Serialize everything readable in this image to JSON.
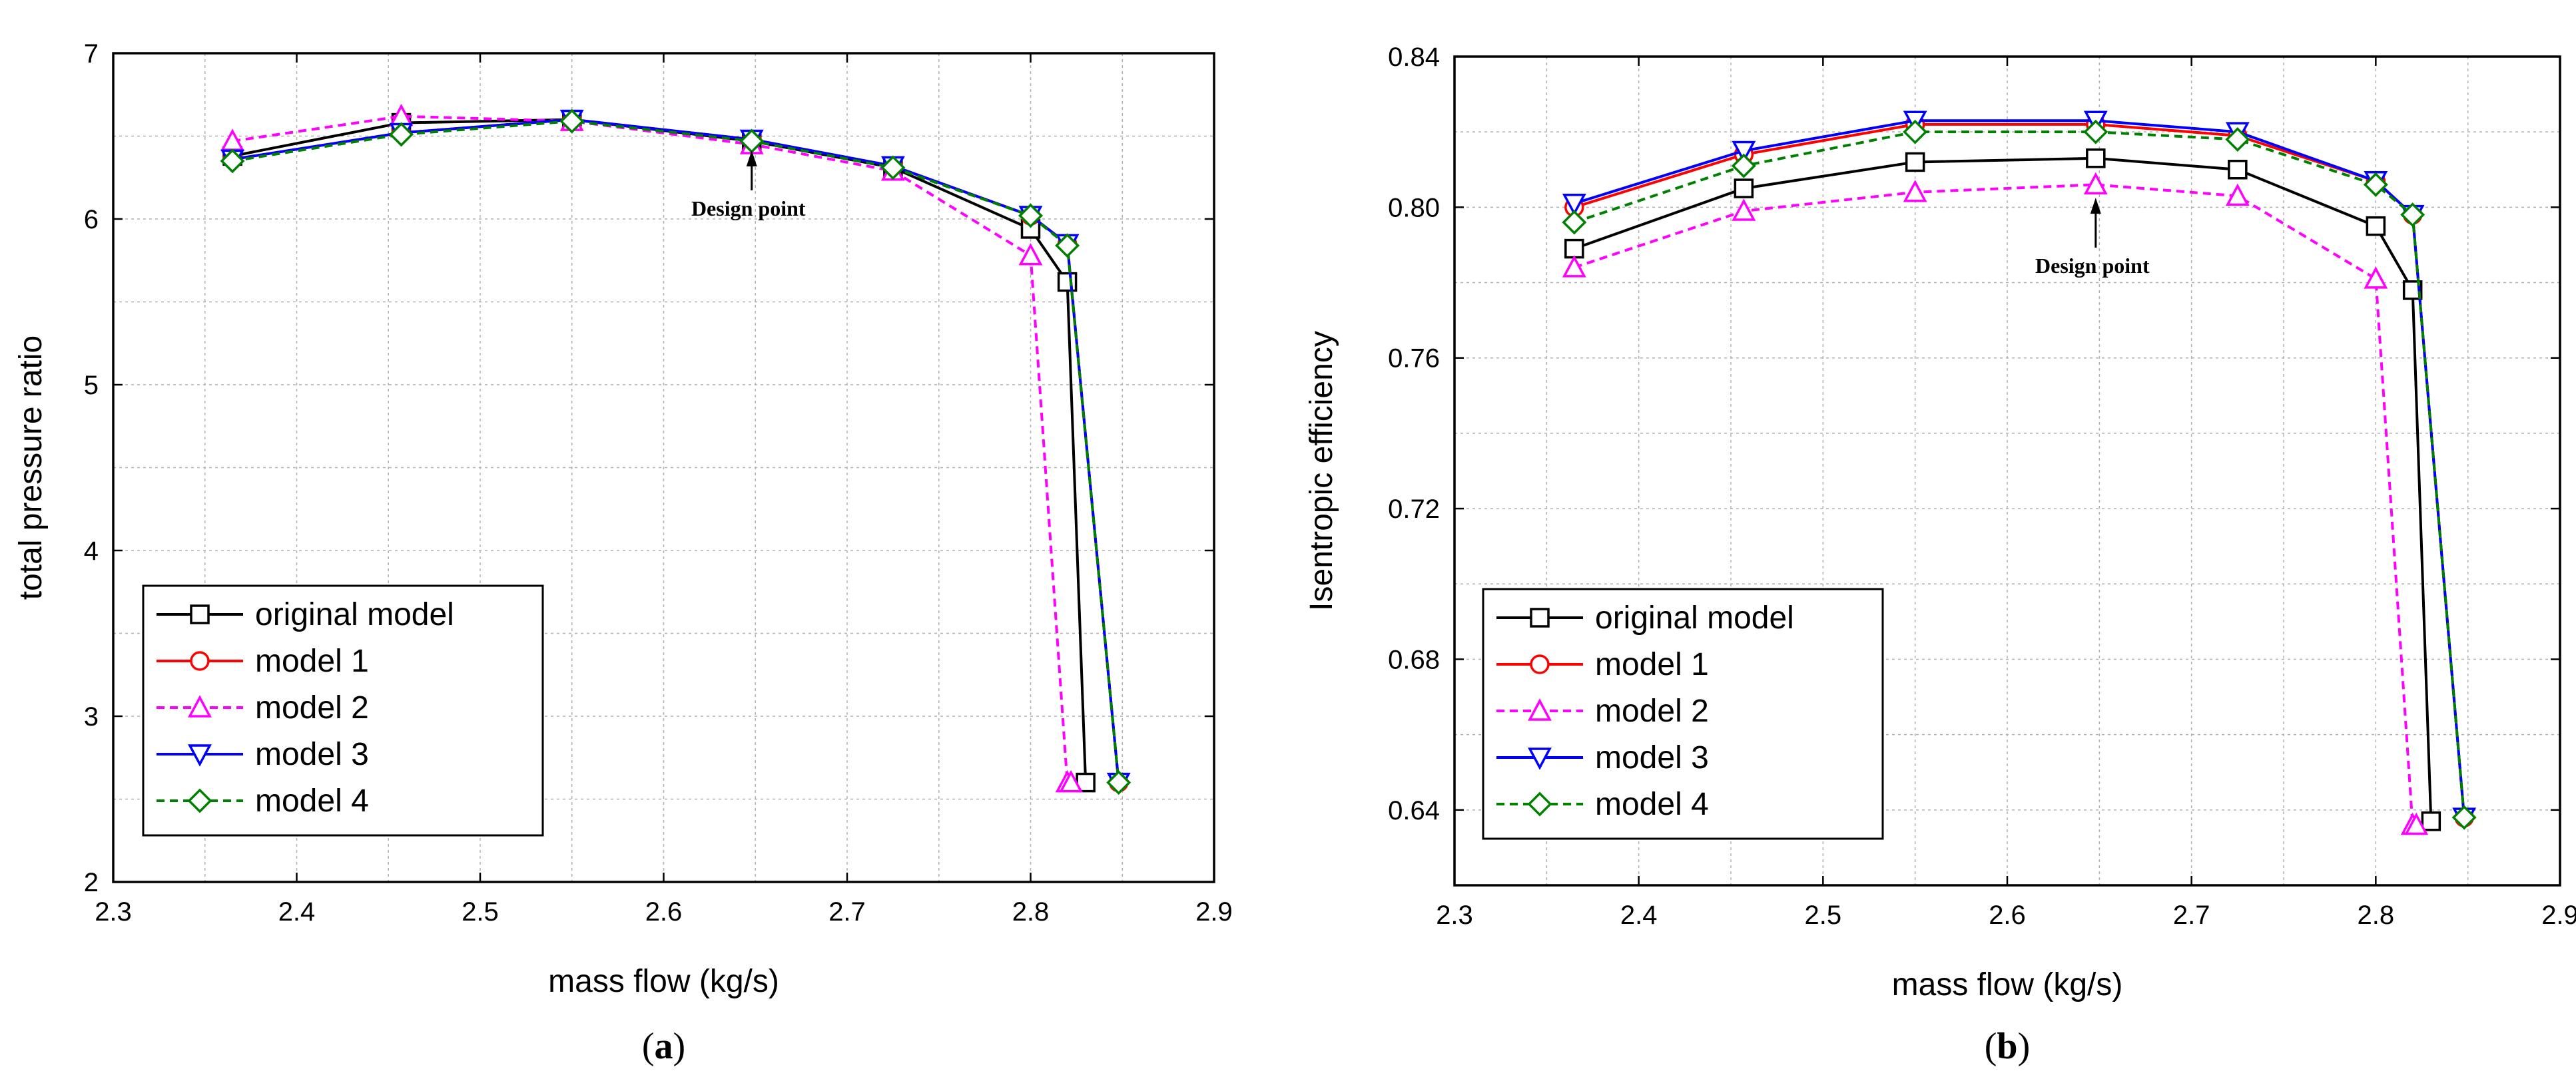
{
  "chart_data": [
    {
      "type": "line",
      "panel_label": "a",
      "xlabel": "mass flow (kg/s)",
      "ylabel": "total pressure ratio",
      "xlim": [
        2.3,
        2.9
      ],
      "ylim": [
        2,
        7
      ],
      "xticks": [
        "2.3",
        "2.4",
        "2.5",
        "2.6",
        "2.7",
        "2.8",
        "2.9"
      ],
      "yticks": [
        "2",
        "3",
        "4",
        "5",
        "6",
        "7"
      ],
      "grid": true,
      "legend_position": "bottom-left",
      "annotation": {
        "text": "Design point",
        "x": 2.648,
        "y": 6.47
      },
      "series": [
        {
          "name": "original model",
          "color": "#000000",
          "dash": "solid",
          "marker": "square",
          "x": [
            2.365,
            2.457,
            2.55,
            2.648,
            2.725,
            2.8,
            2.82,
            2.83
          ],
          "y": [
            6.38,
            6.58,
            6.6,
            6.47,
            6.31,
            5.94,
            5.62,
            2.6
          ]
        },
        {
          "name": "model 1",
          "color": "#ff0000",
          "dash": "solid",
          "marker": "circle",
          "x": [
            2.365,
            2.457,
            2.55,
            2.648,
            2.725,
            2.8,
            2.82,
            2.848
          ],
          "y": [
            6.36,
            6.52,
            6.6,
            6.48,
            6.32,
            6.02,
            5.85,
            2.6
          ]
        },
        {
          "name": "model 2",
          "color": "#ff00ff",
          "dash": "dashed",
          "marker": "triangle-up",
          "x": [
            2.365,
            2.457,
            2.55,
            2.648,
            2.725,
            2.8,
            2.82,
            2.822
          ],
          "y": [
            6.47,
            6.62,
            6.59,
            6.45,
            6.29,
            5.78,
            2.6,
            2.6
          ]
        },
        {
          "name": "model 3",
          "color": "#0000ff",
          "dash": "solid",
          "marker": "triangle-down",
          "x": [
            2.365,
            2.457,
            2.55,
            2.648,
            2.725,
            2.8,
            2.82,
            2.848
          ],
          "y": [
            6.36,
            6.52,
            6.6,
            6.48,
            6.32,
            6.02,
            5.85,
            2.6
          ]
        },
        {
          "name": "model 4",
          "color": "#008000",
          "dash": "dashed",
          "marker": "diamond",
          "x": [
            2.365,
            2.457,
            2.55,
            2.648,
            2.725,
            2.8,
            2.82,
            2.848
          ],
          "y": [
            6.35,
            6.51,
            6.59,
            6.47,
            6.31,
            6.02,
            5.84,
            2.6
          ]
        }
      ]
    },
    {
      "type": "line",
      "panel_label": "b",
      "xlabel": "mass flow (kg/s)",
      "ylabel": "Isentropic efficiency",
      "xlim": [
        2.3,
        2.9
      ],
      "ylim": [
        0.62,
        0.84
      ],
      "xticks": [
        "2.3",
        "2.4",
        "2.5",
        "2.6",
        "2.7",
        "2.8",
        "2.9"
      ],
      "yticks": [
        "0.64",
        "0.68",
        "0.72",
        "0.76",
        "0.80",
        "0.84"
      ],
      "grid": true,
      "legend_position": "bottom-left",
      "annotation": {
        "text": "Design point",
        "x": 2.648,
        "y": 0.805
      },
      "series": [
        {
          "name": "original model",
          "color": "#000000",
          "dash": "solid",
          "marker": "square",
          "x": [
            2.365,
            2.457,
            2.55,
            2.648,
            2.725,
            2.8,
            2.82,
            2.83
          ],
          "y": [
            0.789,
            0.805,
            0.812,
            0.813,
            0.81,
            0.795,
            0.778,
            0.637
          ]
        },
        {
          "name": "model 1",
          "color": "#ff0000",
          "dash": "solid",
          "marker": "circle",
          "x": [
            2.365,
            2.457,
            2.55,
            2.648,
            2.725,
            2.8,
            2.82,
            2.848
          ],
          "y": [
            0.8,
            0.814,
            0.822,
            0.822,
            0.819,
            0.807,
            0.798,
            0.638
          ]
        },
        {
          "name": "model 2",
          "color": "#ff00ff",
          "dash": "dashed",
          "marker": "triangle-up",
          "x": [
            2.365,
            2.457,
            2.55,
            2.648,
            2.725,
            2.8,
            2.82,
            2.822
          ],
          "y": [
            0.784,
            0.799,
            0.804,
            0.806,
            0.803,
            0.781,
            0.636,
            0.636
          ]
        },
        {
          "name": "model 3",
          "color": "#0000ff",
          "dash": "solid",
          "marker": "triangle-down",
          "x": [
            2.365,
            2.457,
            2.55,
            2.648,
            2.725,
            2.8,
            2.82,
            2.848
          ],
          "y": [
            0.801,
            0.815,
            0.823,
            0.823,
            0.82,
            0.807,
            0.798,
            0.638
          ]
        },
        {
          "name": "model 4",
          "color": "#008000",
          "dash": "dashed",
          "marker": "diamond",
          "x": [
            2.365,
            2.457,
            2.55,
            2.648,
            2.725,
            2.8,
            2.82,
            2.848
          ],
          "y": [
            0.796,
            0.811,
            0.82,
            0.82,
            0.818,
            0.806,
            0.798,
            0.638
          ]
        }
      ]
    }
  ]
}
